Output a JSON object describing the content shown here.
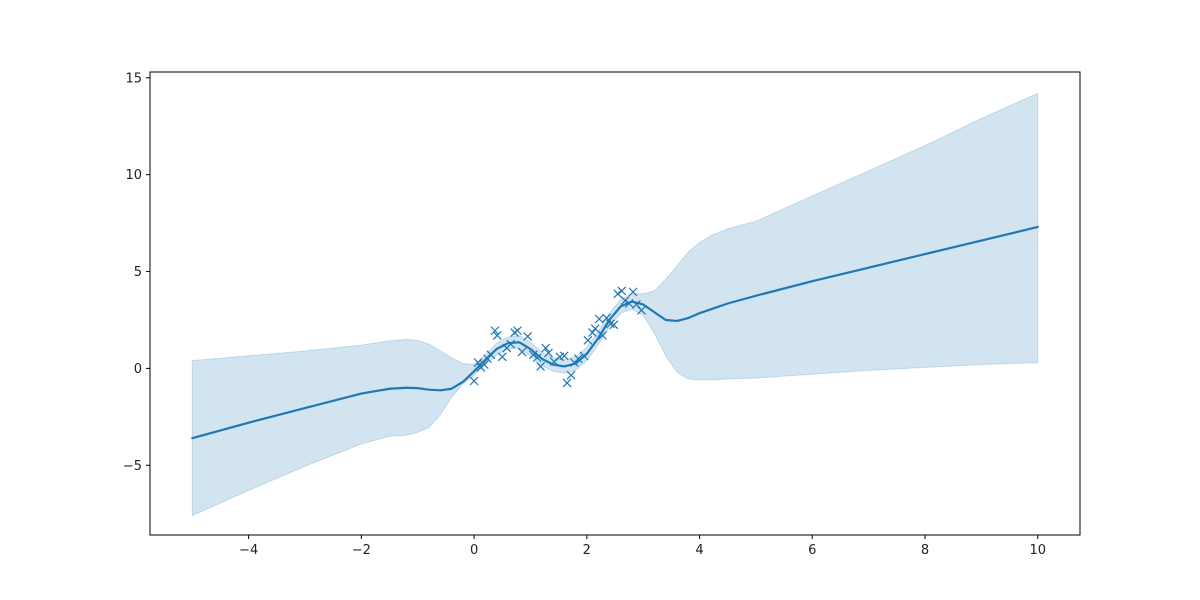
{
  "chart_data": {
    "type": "line",
    "title": "",
    "xlabel": "",
    "ylabel": "",
    "xlim": [
      -5.75,
      10.75
    ],
    "ylim": [
      -8.6,
      15.3
    ],
    "grid": false,
    "legend": "none",
    "x_ticks": [
      -4,
      -2,
      0,
      2,
      4,
      6,
      8,
      10
    ],
    "x_tick_labels": [
      "−4",
      "−2",
      "0",
      "2",
      "4",
      "6",
      "8",
      "10"
    ],
    "y_ticks": [
      -5,
      0,
      5,
      10,
      15
    ],
    "y_tick_labels": [
      "−5",
      "0",
      "5",
      "10",
      "15"
    ],
    "colors": {
      "line": "#1f77b4",
      "band": "#1f77b4",
      "markers": "#1f77b4",
      "axes": "#000000"
    },
    "mean": {
      "x": [
        -5,
        -4,
        -3,
        -2,
        -1.5,
        -1.2,
        -1.0,
        -0.8,
        -0.6,
        -0.4,
        -0.2,
        0,
        0.2,
        0.4,
        0.6,
        0.8,
        1.0,
        1.2,
        1.4,
        1.6,
        1.8,
        2.0,
        2.2,
        2.4,
        2.6,
        2.8,
        3.0,
        3.2,
        3.4,
        3.6,
        3.8,
        4.0,
        4.2,
        4.5,
        5,
        6,
        7,
        8,
        9,
        10
      ],
      "y": [
        -3.6,
        -2.8,
        -2.05,
        -1.3,
        -1.05,
        -1.0,
        -1.02,
        -1.1,
        -1.13,
        -1.05,
        -0.7,
        -0.15,
        0.45,
        1.0,
        1.3,
        1.35,
        1.0,
        0.5,
        0.2,
        0.1,
        0.25,
        0.75,
        1.55,
        2.5,
        3.2,
        3.45,
        3.3,
        2.9,
        2.5,
        2.45,
        2.6,
        2.85,
        3.05,
        3.35,
        3.75,
        4.5,
        5.2,
        5.9,
        6.6,
        7.3
      ]
    },
    "confidence_band": {
      "x": [
        -5,
        -4,
        -3,
        -2,
        -1.5,
        -1.2,
        -1.0,
        -0.8,
        -0.6,
        -0.4,
        -0.2,
        0,
        0.2,
        0.4,
        0.6,
        0.8,
        1.0,
        1.2,
        1.4,
        1.6,
        1.8,
        2.0,
        2.2,
        2.4,
        2.6,
        2.8,
        3.0,
        3.2,
        3.4,
        3.6,
        3.8,
        4.0,
        4.2,
        4.5,
        5,
        6,
        7,
        8,
        9,
        10
      ],
      "upper": [
        0.4,
        0.65,
        0.9,
        1.2,
        1.42,
        1.5,
        1.45,
        1.25,
        0.9,
        0.55,
        0.25,
        0.2,
        0.7,
        1.3,
        1.62,
        1.7,
        1.35,
        0.85,
        0.55,
        0.45,
        0.6,
        1.1,
        1.9,
        2.85,
        3.55,
        3.85,
        3.85,
        4.0,
        4.6,
        5.3,
        6.0,
        6.5,
        6.85,
        7.2,
        7.6,
        8.9,
        10.2,
        11.5,
        12.9,
        14.2
      ],
      "lower": [
        -7.6,
        -6.3,
        -5.05,
        -3.9,
        -3.5,
        -3.45,
        -3.3,
        -3.05,
        -2.4,
        -1.5,
        -0.8,
        -0.35,
        0.2,
        0.7,
        1.0,
        1.05,
        0.65,
        0.15,
        -0.15,
        -0.25,
        -0.1,
        0.4,
        1.2,
        2.15,
        2.85,
        3.05,
        2.75,
        1.8,
        0.65,
        -0.2,
        -0.55,
        -0.6,
        -0.6,
        -0.55,
        -0.5,
        -0.3,
        -0.1,
        0.05,
        0.2,
        0.3
      ]
    },
    "observations": {
      "marker": "x",
      "x": [
        0.0,
        0.07,
        0.12,
        0.18,
        0.24,
        0.3,
        0.37,
        0.41,
        0.5,
        0.58,
        0.65,
        0.72,
        0.77,
        0.85,
        0.95,
        1.05,
        1.12,
        1.18,
        1.27,
        1.32,
        1.42,
        1.52,
        1.6,
        1.65,
        1.72,
        1.78,
        1.85,
        1.95,
        2.02,
        2.1,
        2.15,
        2.22,
        2.28,
        2.35,
        2.42,
        2.48,
        2.55,
        2.62,
        2.68,
        2.75,
        2.82,
        2.88,
        2.97
      ],
      "y": [
        -0.65,
        0.3,
        0.05,
        0.2,
        0.5,
        0.7,
        1.95,
        1.7,
        0.6,
        1.05,
        1.25,
        1.85,
        1.95,
        0.85,
        1.65,
        0.7,
        0.55,
        0.1,
        1.05,
        0.8,
        0.35,
        0.6,
        0.65,
        -0.75,
        -0.35,
        0.3,
        0.5,
        0.65,
        1.45,
        1.85,
        2.05,
        2.55,
        1.7,
        2.6,
        2.3,
        2.25,
        3.85,
        4.0,
        3.5,
        3.35,
        3.95,
        3.3,
        3.0
      ]
    }
  }
}
